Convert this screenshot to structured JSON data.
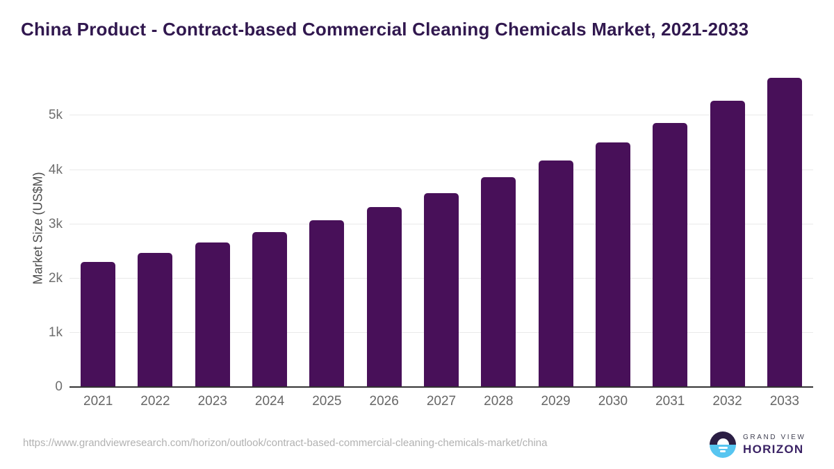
{
  "page": {
    "source_url": "https://www.grandviewresearch.com/horizon/outlook/contract-based-commercial-cleaning-chemicals-market/china"
  },
  "logo": {
    "brand_top": "GRAND VIEW",
    "brand_bottom": "HORIZON"
  },
  "chart_data": {
    "type": "bar",
    "title": "China Product - Contract-based Commercial Cleaning Chemicals Market, 2021-2033",
    "categories": [
      "2021",
      "2022",
      "2023",
      "2024",
      "2025",
      "2026",
      "2027",
      "2028",
      "2029",
      "2030",
      "2031",
      "2032",
      "2033"
    ],
    "values": [
      2300,
      2470,
      2660,
      2860,
      3070,
      3320,
      3570,
      3860,
      4170,
      4500,
      4870,
      5270,
      5700
    ],
    "xlabel": "",
    "ylabel": "Market Size (US$M)",
    "ylim": [
      0,
      5850
    ],
    "yticks": [
      {
        "value": 0,
        "label": "0"
      },
      {
        "value": 1000,
        "label": "1k"
      },
      {
        "value": 2000,
        "label": "2k"
      },
      {
        "value": 3000,
        "label": "3k"
      },
      {
        "value": 4000,
        "label": "4k"
      },
      {
        "value": 5000,
        "label": "5k"
      }
    ],
    "grid": true,
    "legend": "none",
    "bar_color": "#481059",
    "title_color": "#31184f",
    "grid_color": "#e9e9e9",
    "axis_color": "#333333",
    "tick_color": "#6e6e6e",
    "logo_navy": "#2b1e44",
    "logo_blue": "#57c5f0"
  }
}
